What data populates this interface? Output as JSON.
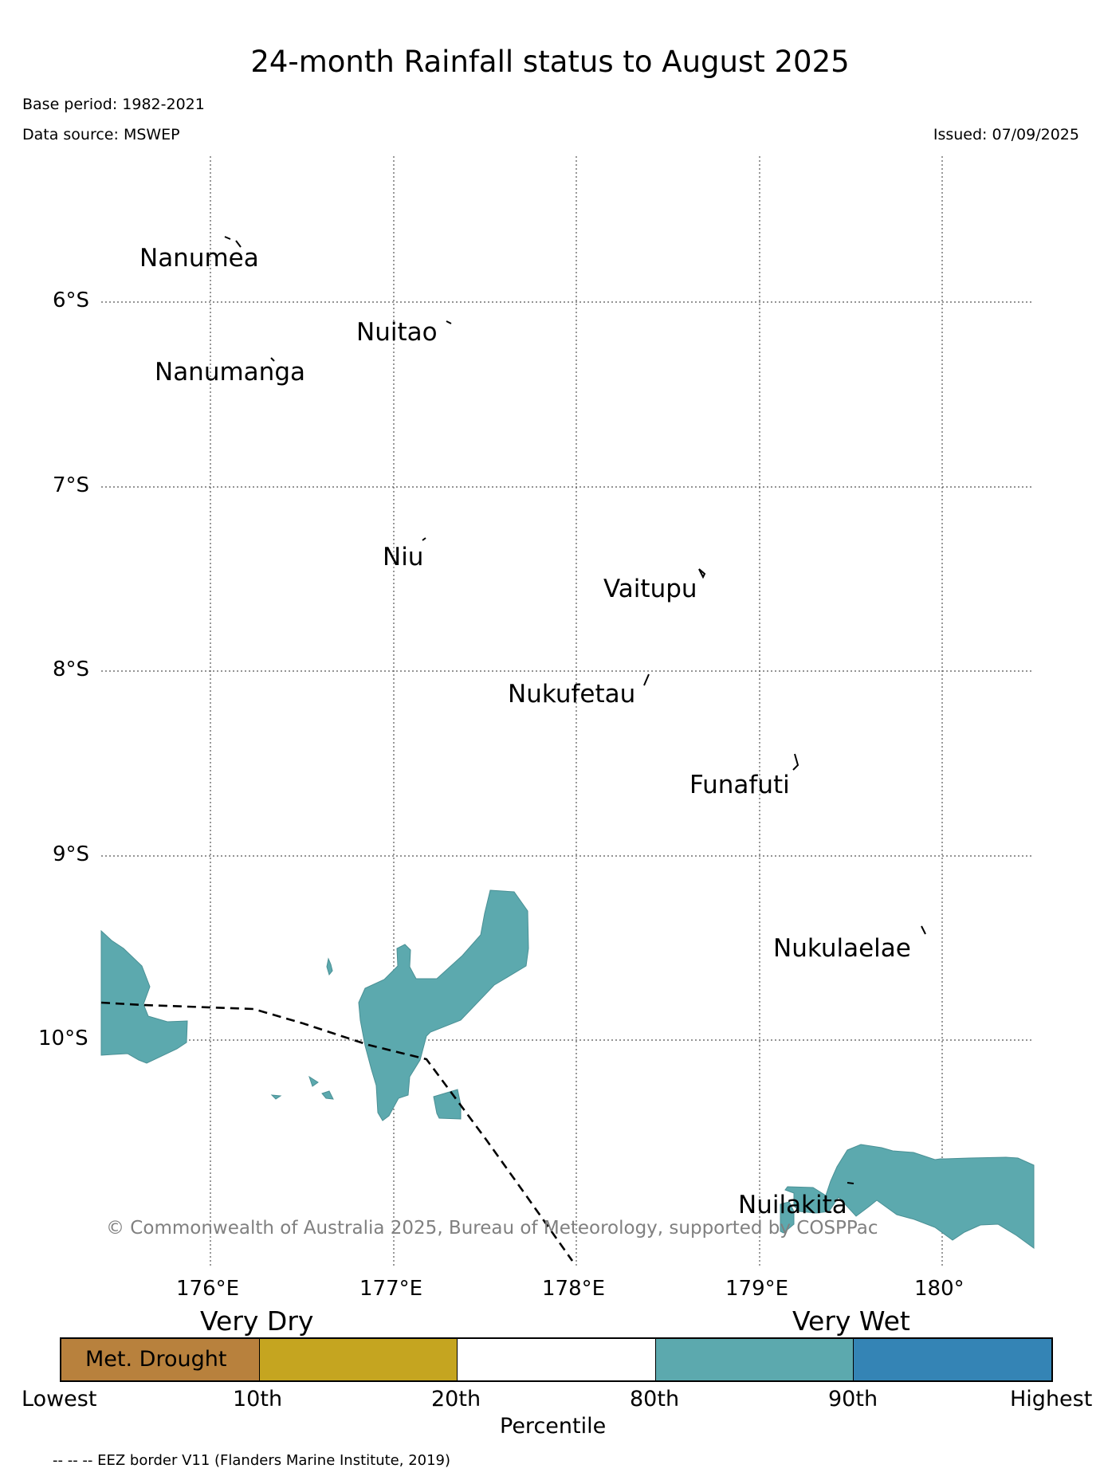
{
  "title": "24-month Rainfall status to August 2025",
  "base_period": "Base period: 1982-2021",
  "data_source": "Data source: MSWEP",
  "issued": "Issued: 07/09/2025",
  "copyright": "© Commonwealth of Australia 2025, Bureau of Meteorology, supported by COSPPac",
  "eez_note": "-- -- -- EEZ border V11 (Flanders Marine Institute, 2019)",
  "axes": {
    "lon_ticks": [
      "176°E",
      "177°E",
      "178°E",
      "179°E",
      "180°"
    ],
    "lat_ticks": [
      "6°S",
      "7°S",
      "8°S",
      "9°S",
      "10°S"
    ]
  },
  "places": [
    "Nanumea",
    "Nuitao",
    "Nanumanga",
    "Niu",
    "Vaitupu",
    "Nukufetau",
    "Funafuti",
    "Nukulaelae",
    "Nuilakita"
  ],
  "legend": {
    "very_dry": "Very Dry",
    "very_wet": "Very Wet",
    "met_drought": "Met. Drought",
    "percentile_label": "Percentile",
    "ticks": [
      "Lowest",
      "10th",
      "20th",
      "80th",
      "90th",
      "Highest"
    ],
    "colors": [
      "#b8813d",
      "#c5a520",
      "#ffffff",
      "#5ca9ae",
      "#3484b5"
    ]
  },
  "colors": {
    "very_wet_fill": "#5ca9ae",
    "grid": "#555555"
  }
}
